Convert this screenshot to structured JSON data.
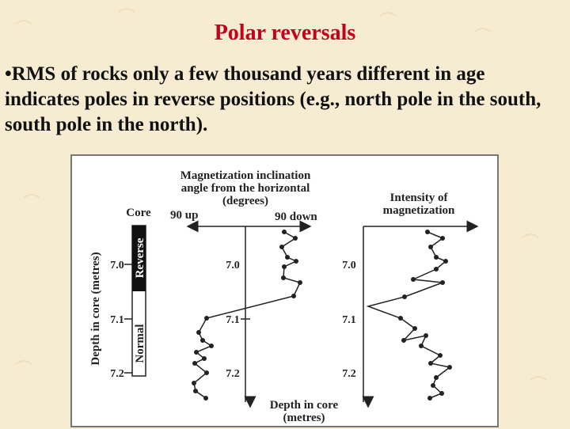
{
  "slide": {
    "title": "Polar reversals",
    "bullet_marker": "•",
    "bullet_text": "RMS of rocks only a few thousand years different in age indicates poles in reverse positions (e.g., north pole in the south, south pole in the north)."
  },
  "figure": {
    "inclination_header": [
      "Magnetization inclination",
      "angle from the horizontal",
      "(degrees)"
    ],
    "up_label": "90 up",
    "down_label": "90 down",
    "core_label": "Core",
    "reverse_label": "Reverse",
    "normal_label": "Normal",
    "depth_axis_label": "Depth in core (metres)",
    "intensity_header": [
      "Intensity of",
      "magnetization"
    ],
    "depth_footer": [
      "Depth in core",
      "(metres)"
    ],
    "depth_ticks": [
      "7.0",
      "7.1",
      "7.2"
    ],
    "colors": {
      "title": "#c4001b",
      "reverse": "#111111",
      "normal": "#ffffff",
      "curve": "#222222"
    }
  }
}
